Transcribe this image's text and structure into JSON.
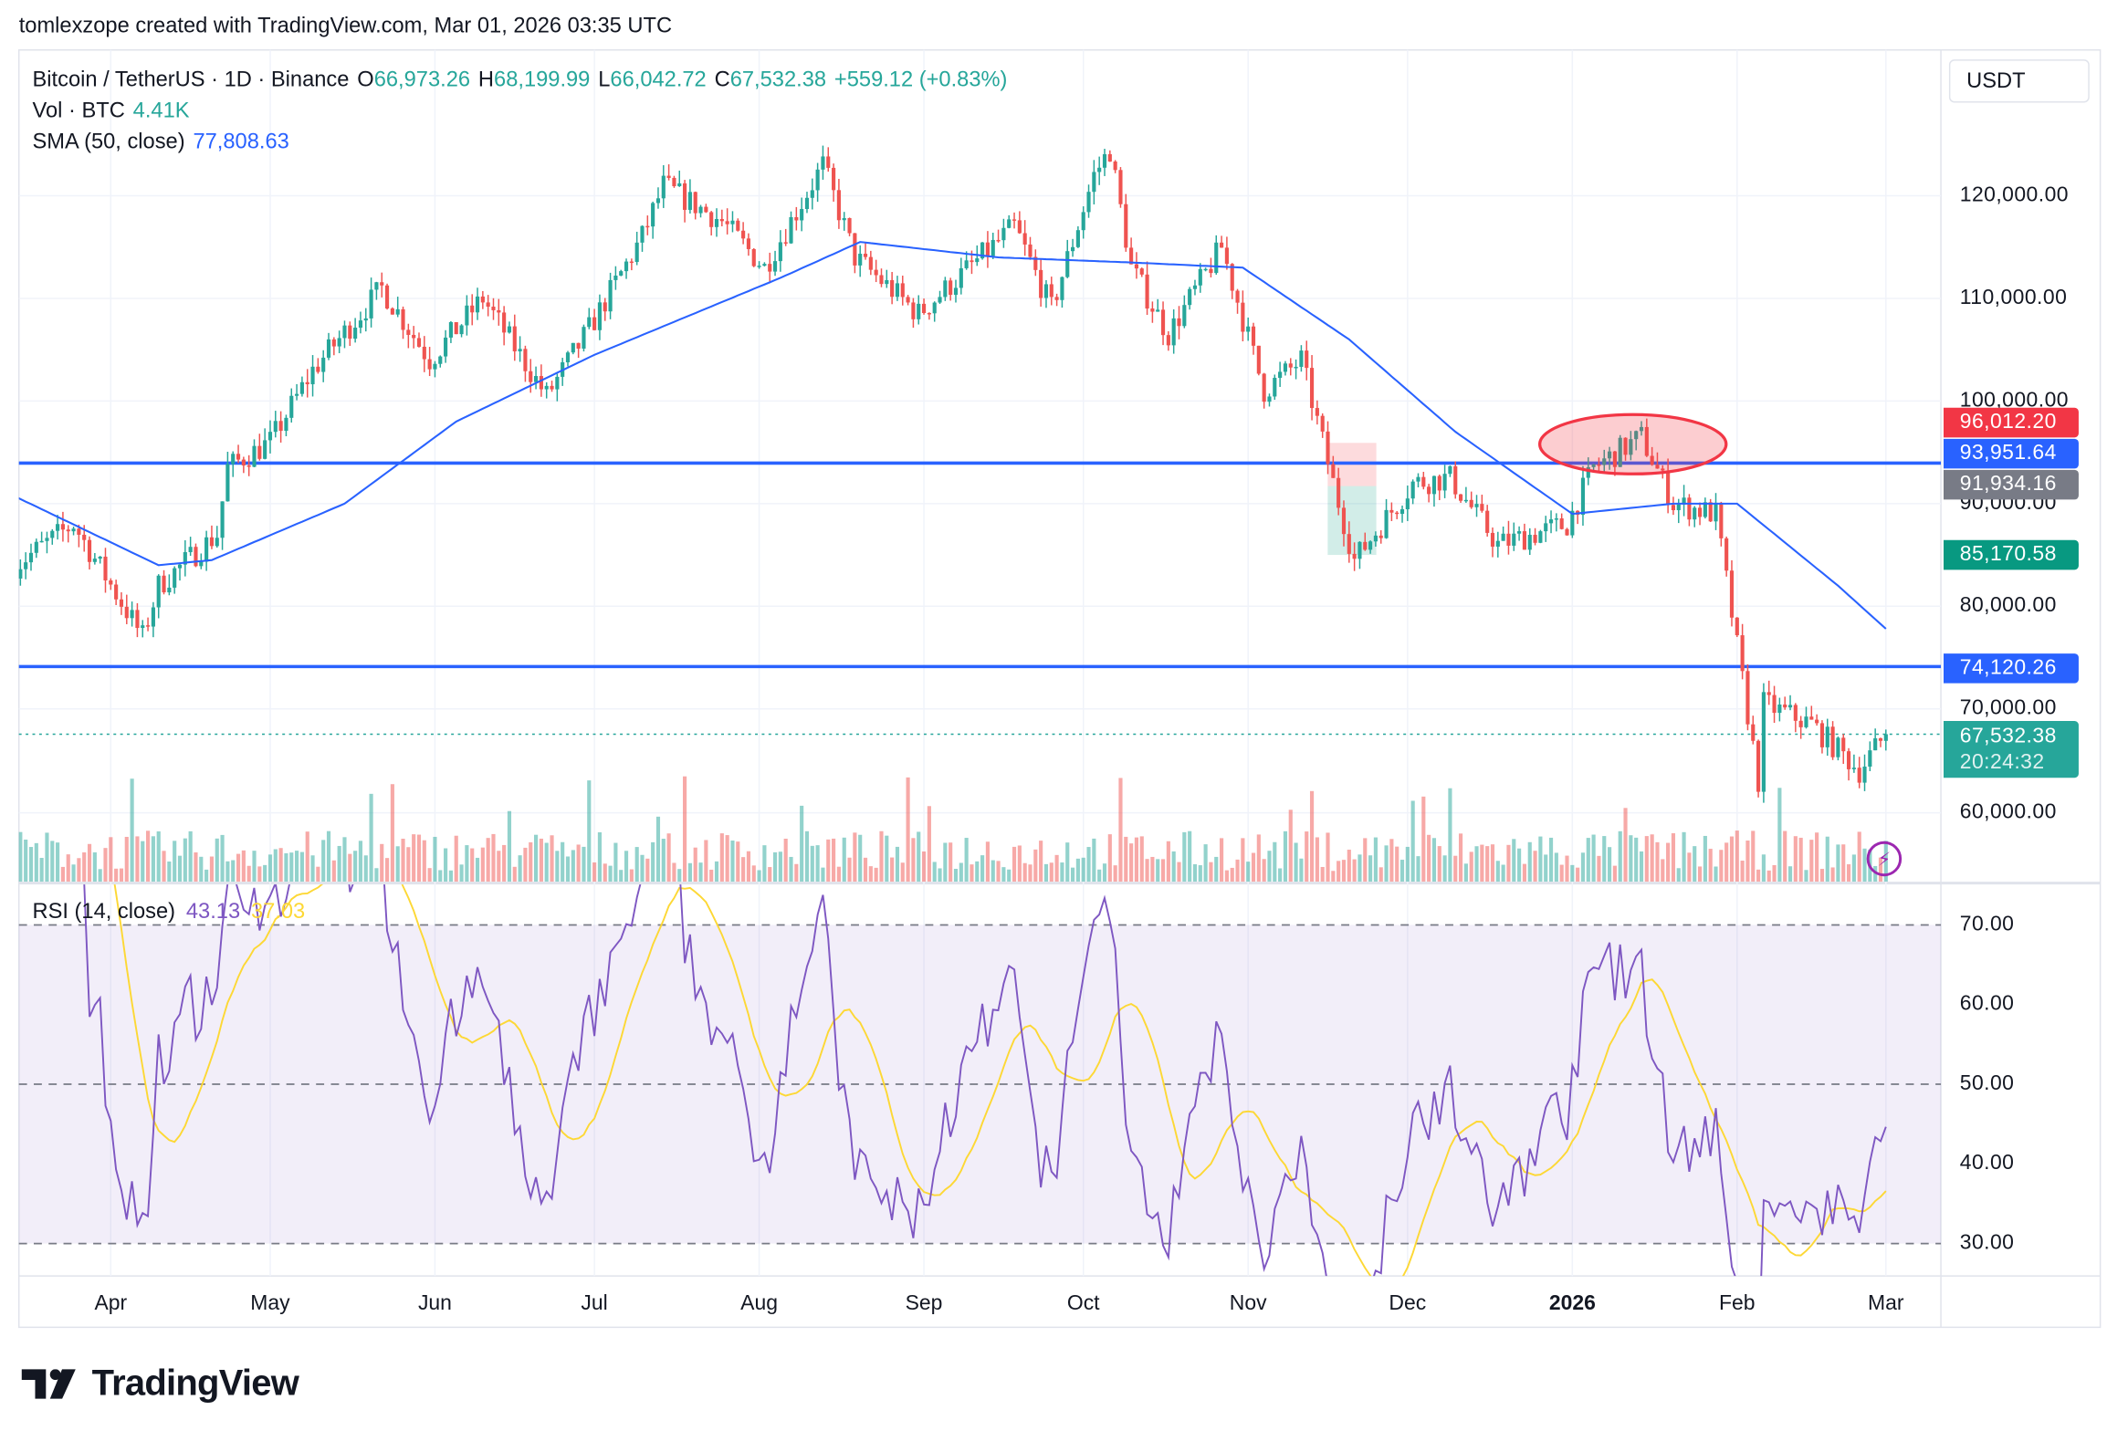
{
  "credit": "tomlexzope created with TradingView.com, Mar 01, 2026 03:35 UTC",
  "legend": {
    "symbol": "Bitcoin / TetherUS · 1D · Binance",
    "o_label": "O",
    "o": "66,973.26",
    "h_label": "H",
    "h": "68,199.99",
    "l_label": "L",
    "l": "66,042.72",
    "c_label": "C",
    "c": "67,532.38",
    "change": "+559.12 (+0.83%)",
    "vol_label": "Vol · BTC",
    "vol": "4.41K",
    "sma_label": "SMA (50, close)",
    "sma": "77,808.63",
    "rsi_label": "RSI (14, close)",
    "rsi": "43.13",
    "rsi_ma": "37.03"
  },
  "currency_button": "USDT",
  "brand": "TradingView",
  "colors": {
    "up": "#26a69a",
    "down": "#ef5350",
    "sma": "#2962ff",
    "rsi": "#7e57c2",
    "rsi_ma": "#fdd835",
    "hline": "#2962ff"
  },
  "price_tags": [
    {
      "label": "96,012.20",
      "color": "#f23645"
    },
    {
      "label": "93,951.64",
      "color": "#2962ff"
    },
    {
      "label": "91,934.16",
      "color": "#787b86"
    },
    {
      "label": "85,170.58",
      "color": "#089981"
    },
    {
      "label": "74,120.26",
      "color": "#2962ff"
    },
    {
      "label": "67,532.38",
      "sub": "20:24:32",
      "color": "#26a69a"
    }
  ],
  "chart_data": {
    "type": "candlestick",
    "price_axis": {
      "ticks": [
        "120,000.00",
        "110,000.00",
        "100,000.00",
        "90,000.00",
        "80,000.00",
        "70,000.00",
        "60,000.00"
      ],
      "range": [
        53000,
        128000
      ]
    },
    "rsi_axis": {
      "ticks": [
        "70.00",
        "60.00",
        "50.00",
        "40.00",
        "30.00"
      ],
      "band": [
        30,
        70
      ]
    },
    "x_ticks": [
      "Apr",
      "May",
      "Jun",
      "Jul",
      "Aug",
      "Sep",
      "Oct",
      "Nov",
      "Dec",
      "2026",
      "Feb",
      "Mar"
    ],
    "horizontal_lines": [
      93951.64,
      74120.26
    ],
    "close_path": [
      [
        "2025-03-14",
        84000
      ],
      [
        "2025-03-25",
        88000
      ],
      [
        "2025-04-07",
        77000
      ],
      [
        "2025-04-10",
        82000
      ],
      [
        "2025-04-21",
        87000
      ],
      [
        "2025-04-23",
        93500
      ],
      [
        "2025-05-01",
        96000
      ],
      [
        "2025-05-09",
        103000
      ],
      [
        "2025-05-22",
        111000
      ],
      [
        "2025-05-31",
        104000
      ],
      [
        "2025-06-10",
        110000
      ],
      [
        "2025-06-22",
        100500
      ],
      [
        "2025-06-30",
        107000
      ],
      [
        "2025-07-10",
        116000
      ],
      [
        "2025-07-14",
        121000
      ],
      [
        "2025-07-25",
        117500
      ],
      [
        "2025-08-02",
        113000
      ],
      [
        "2025-08-13",
        123000
      ],
      [
        "2025-08-19",
        114000
      ],
      [
        "2025-08-31",
        108500
      ],
      [
        "2025-09-18",
        117000
      ],
      [
        "2025-09-25",
        109000
      ],
      [
        "2025-10-03",
        122000
      ],
      [
        "2025-10-06",
        124500
      ],
      [
        "2025-10-10",
        113000
      ],
      [
        "2025-10-17",
        106500
      ],
      [
        "2025-10-27",
        115000
      ],
      [
        "2025-11-04",
        101000
      ],
      [
        "2025-11-11",
        104000
      ],
      [
        "2025-11-17",
        92000
      ],
      [
        "2025-11-21",
        84500
      ],
      [
        "2025-12-02",
        92000
      ],
      [
        "2025-12-09",
        92500
      ],
      [
        "2025-12-18",
        86000
      ],
      [
        "2025-12-31",
        88000
      ],
      [
        "2026-01-05",
        93500
      ],
      [
        "2026-01-14",
        96500
      ],
      [
        "2026-01-20",
        90000
      ],
      [
        "2026-01-28",
        89000
      ],
      [
        "2026-02-05",
        63000
      ],
      [
        "2026-02-06",
        70500
      ],
      [
        "2026-02-15",
        68500
      ],
      [
        "2026-02-24",
        64000
      ],
      [
        "2026-03-01",
        67532.38
      ]
    ],
    "sma50_path": [
      [
        "2025-03-14",
        90700
      ],
      [
        "2025-04-10",
        84000
      ],
      [
        "2025-04-20",
        84500
      ],
      [
        "2025-05-15",
        90000
      ],
      [
        "2025-06-05",
        98000
      ],
      [
        "2025-07-01",
        104500
      ],
      [
        "2025-08-05",
        112000
      ],
      [
        "2025-08-20",
        115500
      ],
      [
        "2025-09-15",
        114000
      ],
      [
        "2025-10-10",
        113500
      ],
      [
        "2025-10-31",
        113000
      ],
      [
        "2025-11-20",
        106000
      ],
      [
        "2025-12-10",
        97000
      ],
      [
        "2026-01-01",
        89000
      ],
      [
        "2026-01-20",
        90000
      ],
      [
        "2026-02-01",
        90000
      ],
      [
        "2026-02-20",
        82000
      ],
      [
        "2026-03-01",
        77800
      ]
    ]
  }
}
